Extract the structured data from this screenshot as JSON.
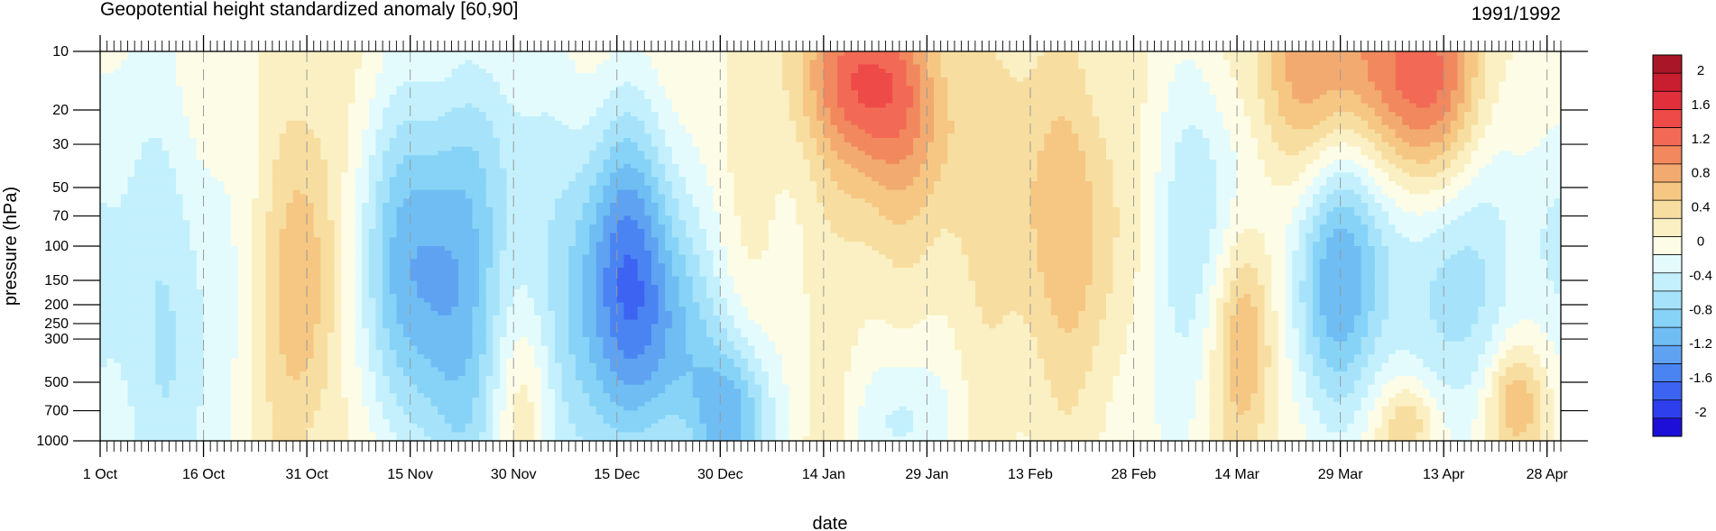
{
  "chart_data": {
    "type": "heatmap",
    "title": "Geopotential height standardized anomaly [60,90]",
    "right_title": "1991/1992",
    "xlabel": "date",
    "ylabel": "pressure (hPa)",
    "y_scale": "log",
    "y_reversed": true,
    "ylim": [
      1000,
      10
    ],
    "x_tick_labels": [
      "1 Oct",
      "16 Oct",
      "31 Oct",
      "15 Nov",
      "30 Nov",
      "15 Dec",
      "30 Dec",
      "14 Jan",
      "29 Jan",
      "13 Feb",
      "28 Feb",
      "14 Mar",
      "29 Mar",
      "13 Apr",
      "28 Apr"
    ],
    "x_tick_days": [
      0,
      15,
      30,
      45,
      60,
      75,
      90,
      105,
      120,
      135,
      150,
      165,
      180,
      195,
      210
    ],
    "x_range_days": [
      0,
      212
    ],
    "y_levels": [
      10,
      20,
      30,
      50,
      70,
      100,
      150,
      200,
      250,
      300,
      500,
      700,
      1000
    ],
    "colorbar": {
      "levels": [
        -2,
        -1.8,
        -1.6,
        -1.4,
        -1.2,
        -1.0,
        -0.8,
        -0.6,
        -0.4,
        -0.2,
        0,
        0.2,
        0.4,
        0.6,
        0.8,
        1.0,
        1.2,
        1.4,
        1.6,
        1.8,
        2
      ],
      "labels": [
        "2",
        "1.6",
        "1.2",
        "0.8",
        "0.4",
        "0",
        "-0.4",
        "-0.8",
        "-1.2",
        "-1.6",
        "-2"
      ],
      "colors": [
        "#1E0FD8",
        "#2E3FEE",
        "#3C63F2",
        "#4A84F2",
        "#5FA2F2",
        "#6FBDF3",
        "#86D3F7",
        "#A6E3FA",
        "#C3F0FC",
        "#E4FBFD",
        "#FDFCE6",
        "#FBF0C3",
        "#F7DEA0",
        "#F5C783",
        "#F2AA70",
        "#F2885E",
        "#F26A55",
        "#EE4A48",
        "#E0303C",
        "#C81E30",
        "#A81628"
      ]
    },
    "grid": true,
    "dashed_vertical_lines_at_ticks": true
  }
}
